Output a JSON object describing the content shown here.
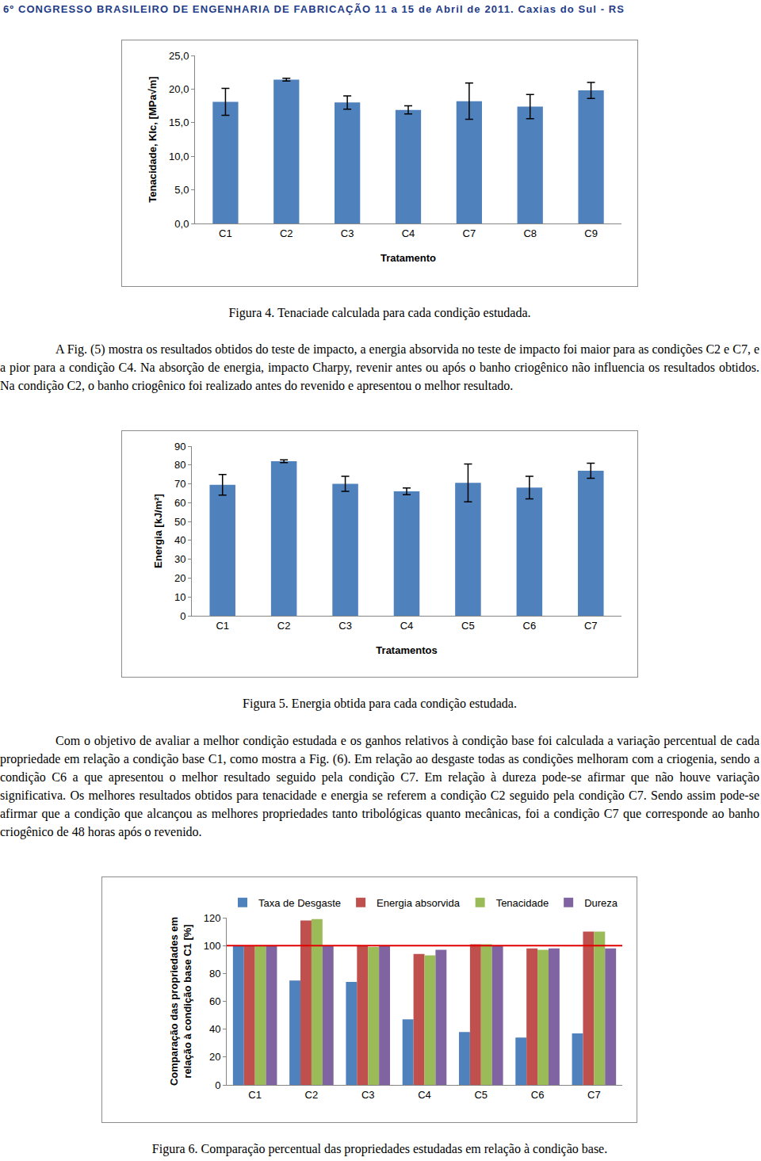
{
  "header": "6º CONGRESSO BRASILEIRO DE ENGENHARIA DE FABRICAÇÃO 11 a 15 de Abril de 2011. Caxias do Sul - RS",
  "chart_data": [
    {
      "type": "bar",
      "x_label": "Tratamento",
      "y_label": "Tenacidade, KIc, [MPa√m]",
      "categories": [
        "C1",
        "C2",
        "C3",
        "C4",
        "C7",
        "C8",
        "C9"
      ],
      "values": [
        18.1,
        21.4,
        18.0,
        16.9,
        18.2,
        17.4,
        19.8
      ],
      "errors": [
        2.0,
        0.2,
        1.0,
        0.6,
        2.7,
        1.8,
        1.2
      ],
      "color": "#4f81bd",
      "ylim": [
        0,
        25
      ],
      "yticks": [
        {
          "value": 0,
          "label": "0,0"
        },
        {
          "value": 5,
          "label": "5,0"
        },
        {
          "value": 10,
          "label": "10,0"
        },
        {
          "value": 15,
          "label": "15,0"
        },
        {
          "value": 20,
          "label": "20,0"
        },
        {
          "value": 25,
          "label": "25,0"
        }
      ],
      "grid": false
    },
    {
      "type": "bar",
      "x_label": "Tratamentos",
      "y_label": "Energia [kJ/m²]",
      "categories": [
        "C1",
        "C2",
        "C3",
        "C4",
        "C5",
        "C6",
        "C7"
      ],
      "values": [
        69.5,
        82.0,
        70.0,
        66.0,
        70.5,
        68.0,
        77.0
      ],
      "errors": [
        5.5,
        0.7,
        4.0,
        1.8,
        10.0,
        6.0,
        4.0
      ],
      "color": "#4f81bd",
      "ylim": [
        0,
        90
      ],
      "yticks": [
        0,
        10,
        20,
        30,
        40,
        50,
        60,
        70,
        80,
        90
      ],
      "grid": false
    },
    {
      "type": "bar",
      "y_label": "Comparação das propriedades em\nrelação à condição base C1 [%]",
      "categories": [
        "C1",
        "C2",
        "C3",
        "C4",
        "C5",
        "C6",
        "C7"
      ],
      "series": [
        {
          "name": "Taxa de Desgaste",
          "color": "#4f81bd",
          "values": [
            100,
            75,
            74,
            47,
            38,
            34,
            37
          ]
        },
        {
          "name": "Energia absorvida",
          "color": "#c0504d",
          "values": [
            100,
            118,
            100,
            94,
            101,
            98,
            110
          ]
        },
        {
          "name": "Tenacidade",
          "color": "#9bbb59",
          "values": [
            100,
            119,
            99,
            93,
            101,
            97,
            110
          ]
        },
        {
          "name": "Dureza",
          "color": "#8064a2",
          "values": [
            100,
            100,
            100,
            97,
            100,
            98,
            98
          ]
        }
      ],
      "reference_line": {
        "value": 100,
        "color": "#e00000"
      },
      "ylim": [
        0,
        120
      ],
      "yticks": [
        0,
        20,
        40,
        60,
        80,
        100,
        120
      ],
      "legend": "top",
      "grid": false
    }
  ],
  "captions": [
    "Figura 4. Tenaciade calculada para cada condição estudada.",
    "Figura 5. Energia obtida para cada condição estudada.",
    "Figura 6. Comparação percentual das propriedades estudadas em relação à condição base."
  ],
  "paragraphs": [
    "A Fig. (5) mostra os resultados obtidos do teste de impacto, a energia absorvida no teste de impacto foi maior para as condições C2 e C7, e a pior para a condição C4. Na absorção de energia, impacto Charpy, revenir antes ou após o banho criogênico não influencia os resultados obtidos. Na condição C2, o banho criogênico foi realizado antes do revenido e apresentou o melhor resultado.",
    "Com o objetivo de avaliar a melhor condição estudada e os ganhos relativos à condição base foi calculada a variação percentual de cada propriedade em relação a condição base C1, como mostra a Fig. (6). Em relação ao desgaste todas as condições melhoram com a criogenia, sendo a condição C6 a que apresentou o melhor resultado seguido pela condição C7. Em relação à dureza pode-se afirmar que não houve variação significativa. Os melhores resultados obtidos para tenacidade e energia se referem a condição C2 seguido pela condição C7. Sendo assim pode-se afirmar que a condição que alcançou as melhores propriedades tanto tribológicas quanto mecânicas, foi a condição C7 que corresponde ao banho criogênico de 48 horas após o revenido."
  ]
}
